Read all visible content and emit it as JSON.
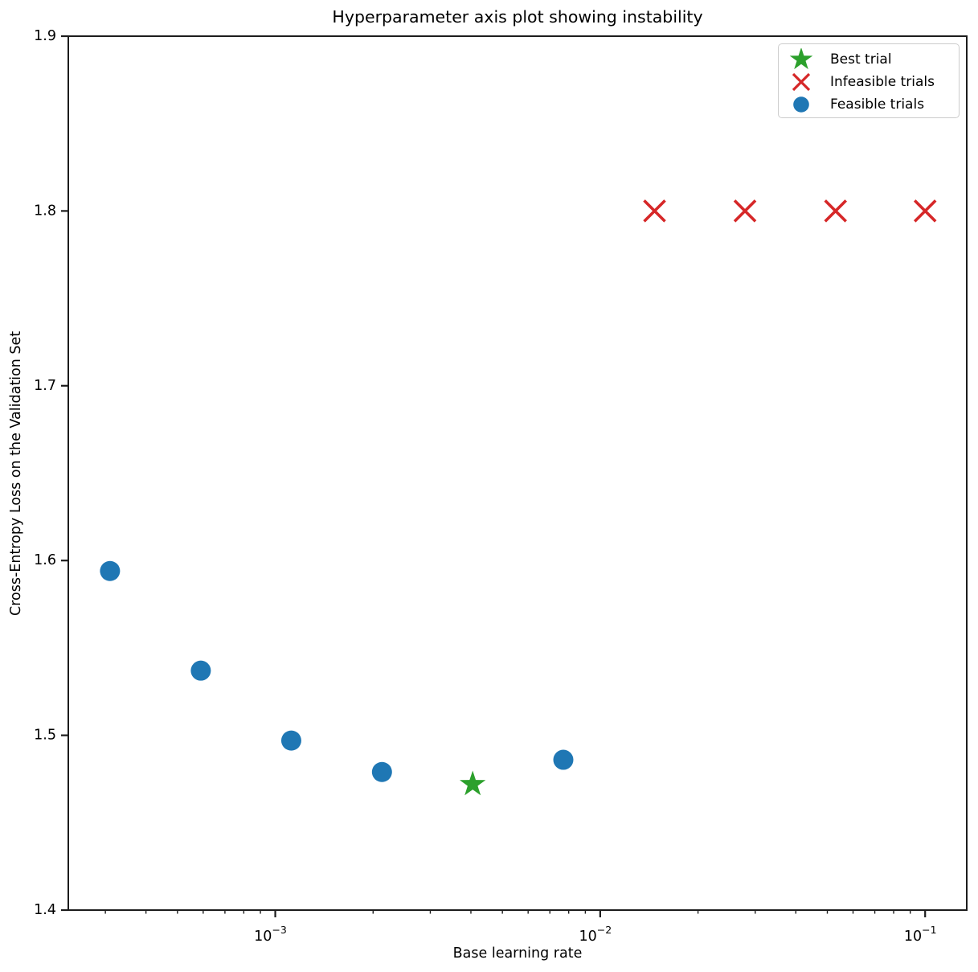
{
  "chart_data": {
    "type": "scatter",
    "title": "Hyperparameter axis plot showing instability",
    "xlabel": "Base learning rate",
    "ylabel": "Cross-Entropy Loss on the Validation Set",
    "x_scale": "log",
    "y_scale": "linear",
    "xlim": [
      0.0002307,
      0.1343
    ],
    "ylim": [
      1.4,
      1.9
    ],
    "grid": false,
    "y_ticks": [
      "1.4",
      "1.5",
      "1.6",
      "1.7",
      "1.8",
      "1.9"
    ],
    "x_major_ticks": [
      {
        "value": 0.001,
        "base": "10",
        "exp": "−3"
      },
      {
        "value": 0.01,
        "base": "10",
        "exp": "−2"
      },
      {
        "value": 0.1,
        "base": "10",
        "exp": "−1"
      }
    ],
    "legend_position": "upper right",
    "series": [
      {
        "name": "Best trial",
        "marker": "star",
        "color": "#2ca02c",
        "points": [
          {
            "x": 0.00405,
            "y": 1.472
          }
        ]
      },
      {
        "name": "Infeasible trials",
        "marker": "x",
        "color": "#d62728",
        "points": [
          {
            "x": 0.0147,
            "y": 1.8
          },
          {
            "x": 0.0279,
            "y": 1.8
          },
          {
            "x": 0.053,
            "y": 1.8
          },
          {
            "x": 0.1,
            "y": 1.8
          }
        ]
      },
      {
        "name": "Feasible trials",
        "marker": "circle",
        "color": "#1f77b4",
        "points": [
          {
            "x": 0.00031,
            "y": 1.594
          },
          {
            "x": 0.00059,
            "y": 1.537
          },
          {
            "x": 0.00112,
            "y": 1.497
          },
          {
            "x": 0.00213,
            "y": 1.479
          },
          {
            "x": 0.0077,
            "y": 1.486
          }
        ]
      }
    ],
    "legend": {
      "items": [
        {
          "label": "Best trial",
          "marker": "star",
          "color": "#2ca02c"
        },
        {
          "label": "Infeasible trials",
          "marker": "x",
          "color": "#d62728"
        },
        {
          "label": "Feasible trials",
          "marker": "circle",
          "color": "#1f77b4"
        }
      ]
    },
    "style": {
      "spine_color": "#1c1c1c",
      "tick_color": "#1c1c1c",
      "text_color": "#000000",
      "background": "#ffffff"
    }
  }
}
